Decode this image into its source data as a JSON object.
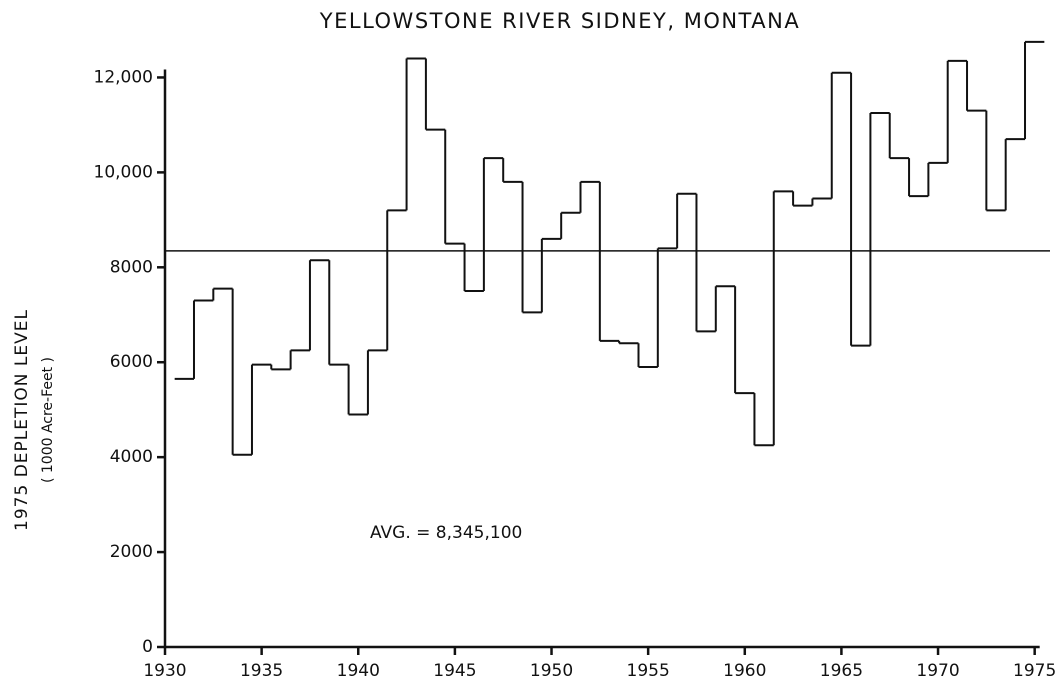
{
  "chart_data": {
    "type": "step",
    "title": "YELLOWSTONE RIVER  SIDNEY, MONTANA",
    "y_label": "1975 DEPLETION LEVEL",
    "y_sublabel": "( 1000 Acre-Feet )",
    "annotation": "AVG. = 8,345,100",
    "average": 8345.1,
    "x": [
      1931,
      1932,
      1933,
      1934,
      1935,
      1936,
      1937,
      1938,
      1939,
      1940,
      1941,
      1942,
      1943,
      1944,
      1945,
      1946,
      1947,
      1948,
      1949,
      1950,
      1951,
      1952,
      1953,
      1954,
      1955,
      1956,
      1957,
      1958,
      1959,
      1960,
      1961,
      1962,
      1963,
      1964,
      1965,
      1966,
      1967,
      1968,
      1969,
      1970,
      1971,
      1972,
      1973,
      1974,
      1975
    ],
    "values": [
      5650,
      7300,
      7550,
      4050,
      5950,
      5850,
      6250,
      8150,
      5950,
      4900,
      6250,
      9200,
      12400,
      10900,
      8500,
      7500,
      10300,
      9800,
      7050,
      8600,
      9150,
      9800,
      6450,
      6400,
      5900,
      8400,
      9550,
      6650,
      7600,
      5350,
      4250,
      9600,
      9300,
      9450,
      12100,
      6350,
      11250,
      10300,
      9500,
      10200,
      12350,
      11300,
      9200,
      10700,
      12750
    ],
    "xlim": [
      1930,
      1976
    ],
    "ylim": [
      0,
      13000
    ],
    "xticks": [
      1930,
      1935,
      1940,
      1945,
      1950,
      1955,
      1960,
      1965,
      1970,
      1975
    ],
    "yticks": [
      0,
      2000,
      4000,
      6000,
      8000,
      {
        "value": 10000,
        "label": "10,000"
      },
      {
        "value": 12000,
        "label": "12,000"
      }
    ],
    "color": "#111111"
  }
}
